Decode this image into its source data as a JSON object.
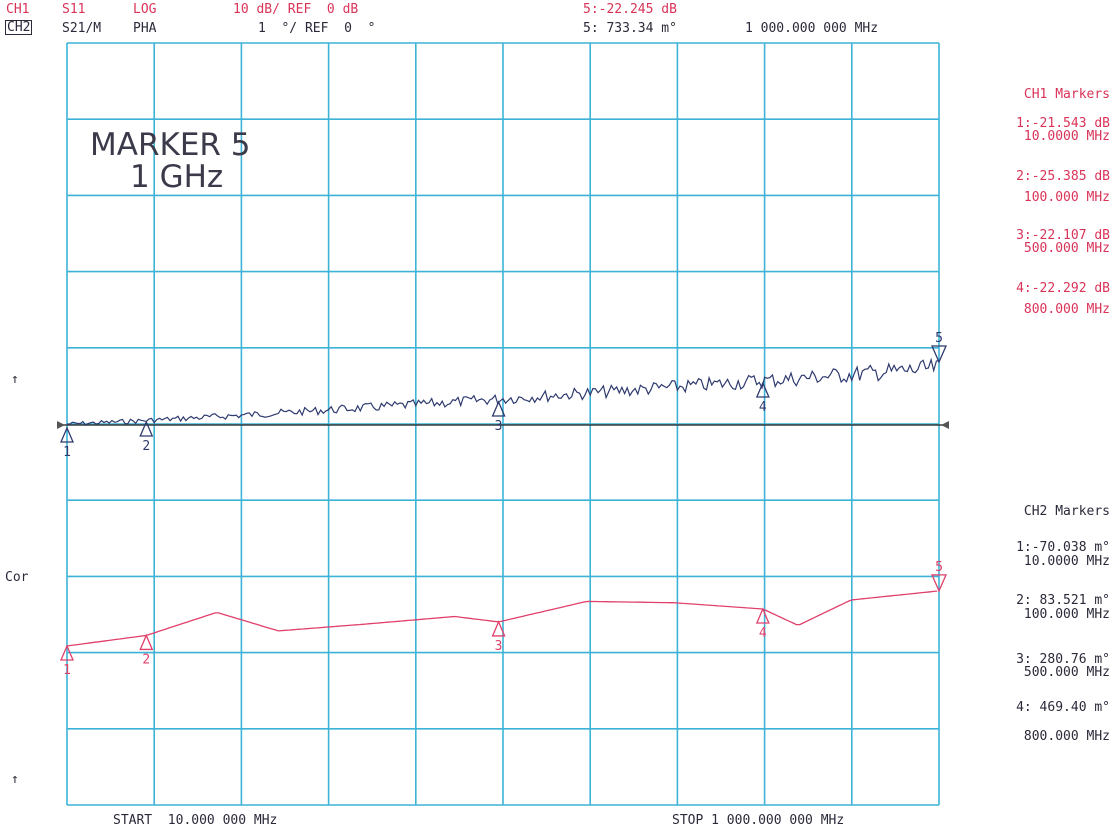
{
  "header": {
    "ch1": "CH1",
    "ch1_param": "S11",
    "ch1_format": "LOG",
    "ch1_scale": "10 dB/ REF  0 dB",
    "ch2": "CH2",
    "ch2_param": "S21/M",
    "ch2_format": "PHA",
    "ch2_scale": "1  °/ REF  0  °",
    "active_marker_ch1": "5:-22.245 dB",
    "active_marker_ch2": "5: 733.34 m°",
    "active_marker_freq": "1 000.000 000 MHz"
  },
  "annotation": {
    "line1": "MARKER 5",
    "line2": "1 GHz"
  },
  "ch1_markers": {
    "title": "CH1 Markers",
    "items": [
      {
        "value": "1:-21.543 dB",
        "freq": "10.0000 MHz"
      },
      {
        "value": "2:-25.385 dB",
        "freq": "100.000 MHz"
      },
      {
        "value": "3:-22.107 dB",
        "freq": "500.000 MHz"
      },
      {
        "value": "4:-22.292 dB",
        "freq": "800.000 MHz"
      }
    ]
  },
  "ch2_markers": {
    "title": "CH2 Markers",
    "items": [
      {
        "value": "1:-70.038 m°",
        "freq": "10.0000 MHz"
      },
      {
        "value": "2: 83.521 m°",
        "freq": "100.000 MHz"
      },
      {
        "value": "3: 280.76 m°",
        "freq": "500.000 MHz"
      },
      {
        "value": "4: 469.40 m°",
        "freq": "800.000 MHz"
      }
    ]
  },
  "footer": {
    "start": "START  10.000 000 MHz",
    "stop": "STOP 1 000.000 000 MHz"
  },
  "side_labels": {
    "cor": "Cor",
    "ref_arrow_1": "↑",
    "ref_arrow_2": "↑"
  },
  "colors": {
    "grid": "#3cb3d6",
    "ch1_trace": "#2f3a6e",
    "ch2_trace": "#e0406a",
    "text_red": "#d93358",
    "text_dark": "#2a2a3a"
  },
  "chart_data": {
    "type": "line",
    "x_start_mhz": 10,
    "x_stop_mhz": 1000,
    "x_divisions": 10,
    "y_divisions": 10,
    "grid": true,
    "series": [
      {
        "channel": "CH1",
        "points_mhz_db": [
          [
            10,
            -21.543
          ],
          [
            100,
            -25.385
          ],
          [
            200,
            -23.5
          ],
          [
            300,
            -23.0
          ],
          [
            400,
            -22.7
          ],
          [
            500,
            -22.107
          ],
          [
            600,
            -21.6
          ],
          [
            700,
            -20.8
          ],
          [
            800,
            -22.292
          ],
          [
            900,
            -20.0
          ],
          [
            1000,
            -22.245
          ]
        ]
      },
      {
        "channel": "CH2",
        "points_mhz_mdeg": [
          [
            10,
            -70.038
          ],
          [
            100,
            83.521
          ],
          [
            180,
            420.0
          ],
          [
            250,
            150.0
          ],
          [
            350,
            250.0
          ],
          [
            450,
            360.0
          ],
          [
            500,
            280.76
          ],
          [
            600,
            580.0
          ],
          [
            700,
            560.0
          ],
          [
            800,
            469.4
          ],
          [
            840,
            230.0
          ],
          [
            900,
            600.0
          ],
          [
            1000,
            733.34
          ]
        ]
      }
    ],
    "marker_labels": [
      "1",
      "2",
      "3",
      "4",
      "5"
    ]
  }
}
